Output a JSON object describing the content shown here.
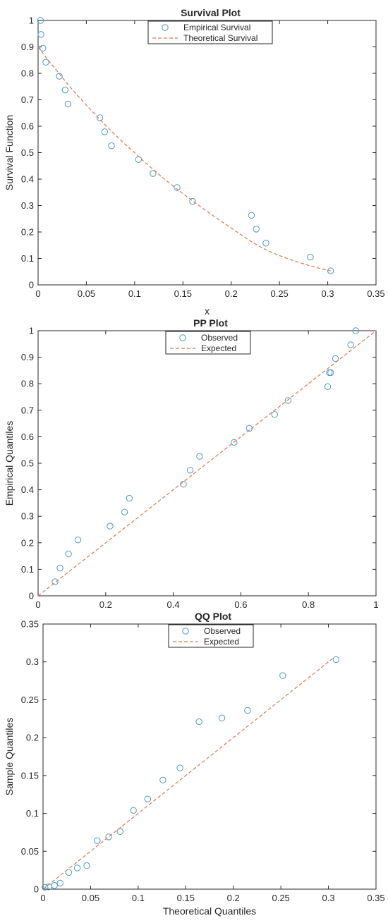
{
  "colors": {
    "observed": "#4A9BC7",
    "reference": "#E0784A"
  },
  "chart_data": [
    {
      "type": "scatter",
      "title": "Survival Plot",
      "xlabel": "x",
      "ylabel": "Survival Function",
      "xlim": [
        0,
        0.35
      ],
      "ylim": [
        0,
        1
      ],
      "xticks": [
        "0",
        "0.05",
        "0.1",
        "0.15",
        "0.2",
        "0.25",
        "0.3",
        "0.35"
      ],
      "yticks": [
        "0",
        "0.1",
        "0.2",
        "0.3",
        "0.4",
        "0.5",
        "0.6",
        "0.7",
        "0.8",
        "0.9",
        "1"
      ],
      "legend_position": "top-center",
      "series": [
        {
          "name": "Empirical Survival",
          "kind": "markers",
          "x": [
            0.0025,
            0.003,
            0.005,
            0.008,
            0.022,
            0.028,
            0.031,
            0.064,
            0.069,
            0.076,
            0.104,
            0.119,
            0.144,
            0.16,
            0.221,
            0.226,
            0.236,
            0.282,
            0.303
          ],
          "y": [
            1.0,
            0.947,
            0.895,
            0.842,
            0.789,
            0.737,
            0.684,
            0.632,
            0.579,
            0.526,
            0.474,
            0.421,
            0.368,
            0.316,
            0.263,
            0.211,
            0.158,
            0.105,
            0.053
          ]
        },
        {
          "name": "Theoretical Survival",
          "kind": "dashed-line",
          "x": [
            0.0,
            0.01,
            0.02,
            0.03,
            0.04,
            0.05,
            0.06,
            0.07,
            0.08,
            0.09,
            0.1,
            0.11,
            0.12,
            0.13,
            0.14,
            0.15,
            0.16,
            0.17,
            0.18,
            0.19,
            0.2,
            0.21,
            0.22,
            0.23,
            0.24,
            0.25,
            0.26,
            0.27,
            0.28,
            0.29,
            0.303
          ],
          "y": [
            0.9,
            0.852,
            0.807,
            0.762,
            0.72,
            0.68,
            0.641,
            0.603,
            0.567,
            0.532,
            0.5,
            0.466,
            0.434,
            0.403,
            0.373,
            0.345,
            0.318,
            0.291,
            0.265,
            0.24,
            0.215,
            0.19,
            0.166,
            0.144,
            0.126,
            0.111,
            0.097,
            0.085,
            0.074,
            0.064,
            0.053
          ]
        }
      ]
    },
    {
      "type": "scatter",
      "title": "PP Plot",
      "xlabel": "",
      "ylabel": "Empirical Quantiles",
      "xlim": [
        0,
        1
      ],
      "ylim": [
        0,
        1
      ],
      "xticks": [
        "0",
        "0.2",
        "0.4",
        "0.6",
        "0.8",
        "1"
      ],
      "yticks": [
        "0",
        "0.1",
        "0.2",
        "0.3",
        "0.4",
        "0.5",
        "0.6",
        "0.7",
        "0.8",
        "0.9",
        "1"
      ],
      "legend_position": "top-center",
      "series": [
        {
          "name": "Observed",
          "kind": "markers",
          "x": [
            0.05,
            0.065,
            0.09,
            0.118,
            0.213,
            0.256,
            0.27,
            0.43,
            0.45,
            0.478,
            0.58,
            0.625,
            0.7,
            0.74,
            0.857,
            0.862,
            0.866,
            0.88,
            0.925,
            0.94
          ],
          "y": [
            0.053,
            0.105,
            0.158,
            0.211,
            0.263,
            0.316,
            0.368,
            0.421,
            0.474,
            0.526,
            0.579,
            0.632,
            0.684,
            0.737,
            0.789,
            0.842,
            0.842,
            0.895,
            0.947,
            1.0
          ]
        },
        {
          "name": "Expected",
          "kind": "dashed-line",
          "x": [
            0,
            1
          ],
          "y": [
            0,
            1
          ]
        }
      ]
    },
    {
      "type": "scatter",
      "title": "QQ Plot",
      "xlabel": "Theoretical Quantiles",
      "ylabel": "Sample Quantiles",
      "xlim": [
        0,
        0.35
      ],
      "ylim": [
        0,
        0.35
      ],
      "xticks": [
        "0",
        "0.05",
        "0.1",
        "0.15",
        "0.2",
        "0.25",
        "0.3",
        "0.35"
      ],
      "yticks": [
        "0",
        "0.05",
        "0.1",
        "0.15",
        "0.2",
        "0.25",
        "0.3",
        "0.35"
      ],
      "legend_position": "top-center",
      "series": [
        {
          "name": "Observed",
          "kind": "markers",
          "x": [
            0.002,
            0.006,
            0.012,
            0.018,
            0.027,
            0.036,
            0.046,
            0.057,
            0.069,
            0.081,
            0.095,
            0.11,
            0.126,
            0.144,
            0.164,
            0.188,
            0.215,
            0.252,
            0.308
          ],
          "y": [
            0.0025,
            0.003,
            0.005,
            0.008,
            0.022,
            0.028,
            0.031,
            0.064,
            0.069,
            0.076,
            0.104,
            0.119,
            0.144,
            0.16,
            0.221,
            0.226,
            0.236,
            0.282,
            0.303
          ]
        },
        {
          "name": "Expected",
          "kind": "dashed-line",
          "x": [
            0,
            0.305
          ],
          "y": [
            0,
            0.305
          ]
        }
      ]
    }
  ]
}
